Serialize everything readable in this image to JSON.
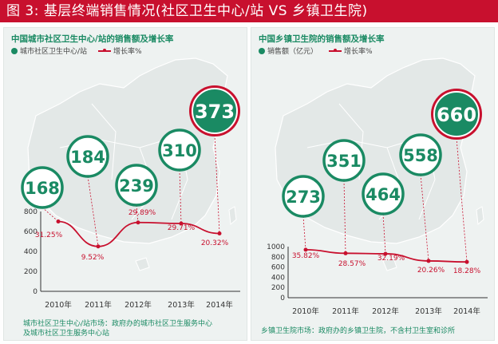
{
  "banner": "图 3: 基层终端销售情况(社区卫生中心/站 VS 乡镇卫生院)",
  "colors": {
    "accent_red": "#c8102e",
    "accent_green": "#1a8a63",
    "map_fill": "#e3e8e7",
    "circle_border": "#1a8a63"
  },
  "left": {
    "title": "中国城市社区卫生中心/站的销售额及增长率",
    "legend_bar": "城市社区卫生中心/站",
    "legend_line": "增长率%",
    "footnote": [
      "城市社区卫生中心/站市场：政府办的城市社区卫生服务中心",
      "及城市社区卫生服务中心站"
    ]
  },
  "right": {
    "title": "中国乡镇卫生院的销售额及增长率",
    "legend_bar": "销售额（亿元）",
    "legend_line": "增长率%",
    "footnote": [
      "乡镇卫生院市场：政府办的乡镇卫生院，不含村卫生室和诊所"
    ]
  },
  "chart_data": [
    {
      "type": "line",
      "categories": [
        "2010年",
        "2011年",
        "2012年",
        "2013年",
        "2014年"
      ],
      "sales": [
        168,
        184,
        239,
        310,
        373
      ],
      "growth_labels": [
        "31.25%",
        "9.52%",
        "29.89%",
        "29.71%",
        "20.32%"
      ],
      "series": [
        {
          "values": [
            700,
            450,
            690,
            680,
            580
          ]
        }
      ],
      "yticks": [
        "800",
        "600",
        "400",
        "200",
        "0"
      ],
      "ylim": [
        0,
        800
      ],
      "highlight_index": 4
    },
    {
      "type": "line",
      "categories": [
        "2010年",
        "2011年",
        "2012年",
        "2013年",
        "2014年"
      ],
      "sales": [
        273,
        351,
        464,
        558,
        660
      ],
      "growth_labels": [
        "35.82%",
        "28.57%",
        "32.19%",
        "20.26%",
        "18.28%"
      ],
      "series": [
        {
          "values": [
            940,
            870,
            860,
            720,
            700
          ]
        }
      ],
      "yticks": [
        "1000",
        "800",
        "600",
        "400",
        "200",
        "0"
      ],
      "ylim": [
        0,
        1000
      ],
      "highlight_index": 4
    }
  ]
}
